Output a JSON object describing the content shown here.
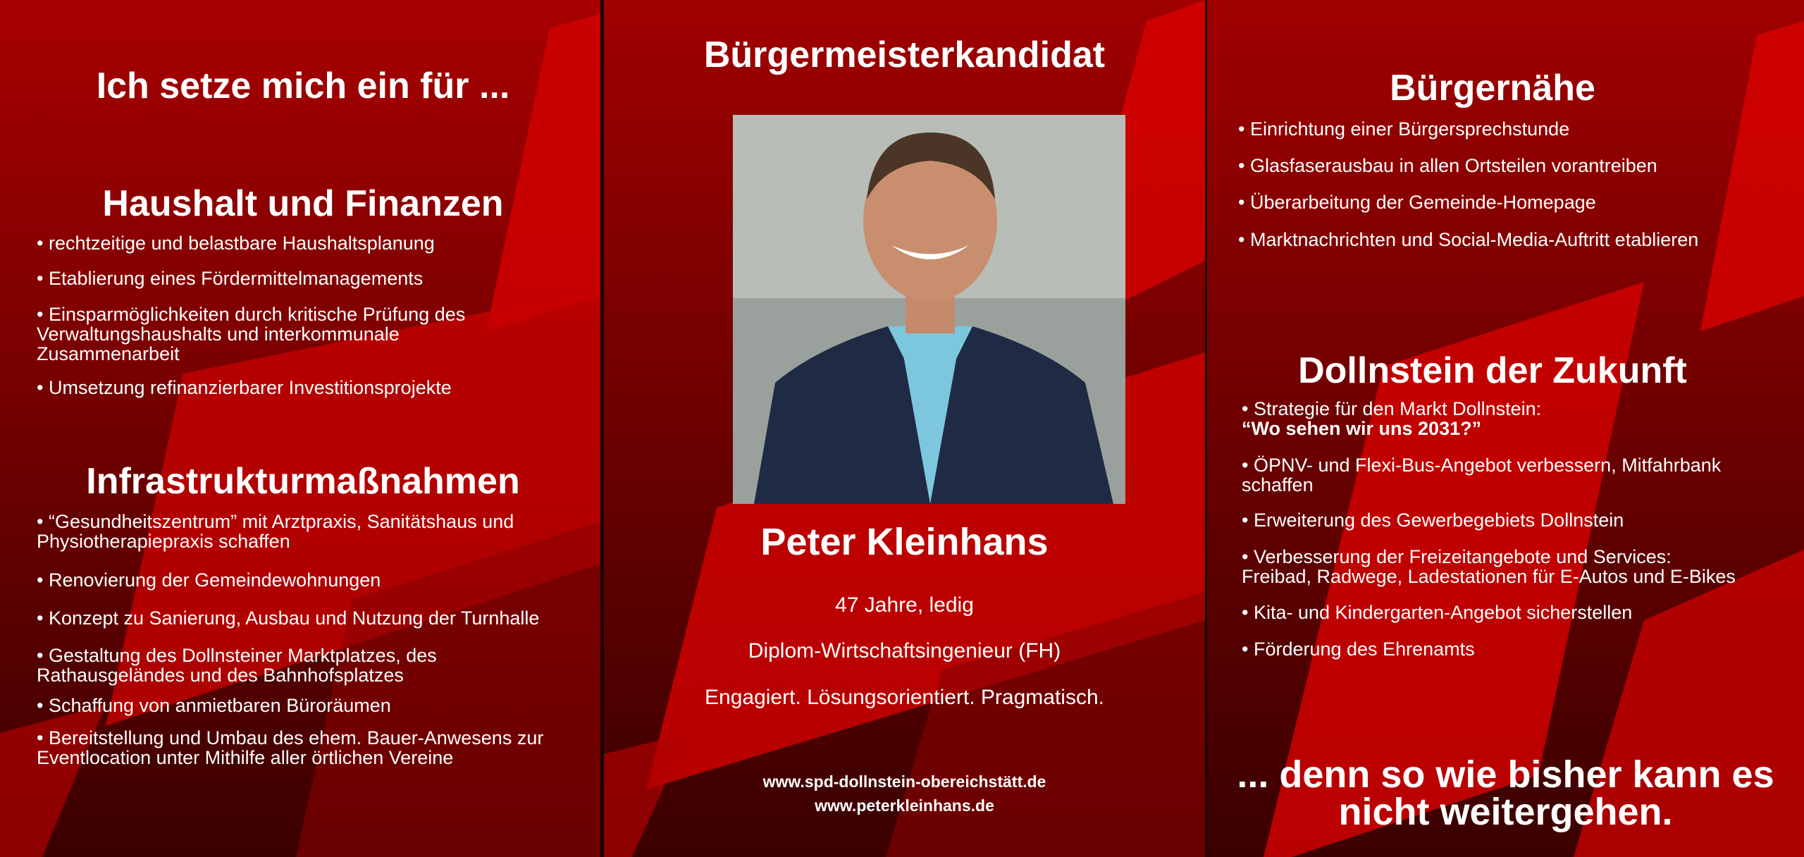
{
  "colors": {
    "dark_red": "#6a0000",
    "red": "#e30613",
    "text": "#ffffff"
  },
  "left": {
    "intro": "Ich setze mich ein für ...",
    "sections": [
      {
        "title": "Haushalt und Finanzen",
        "items": [
          [
            "• rechtzeitige und belastbare Haushaltsplanung"
          ],
          [
            "• Etablierung eines Fördermittelmanagements"
          ],
          [
            "• Einsparmöglichkeiten durch kritische Prüfung des",
            "Verwaltungshaushalts und interkommunale",
            "Zusammenarbeit"
          ],
          [
            "• Umsetzung refinanzierbarer Investitionsprojekte"
          ]
        ]
      },
      {
        "title": "Infrastrukturmaßnahmen",
        "items": [
          [
            "• “Gesundheitszentrum” mit Arztpraxis, Sanitätshaus und",
            "Physiotherapiepraxis schaffen"
          ],
          [
            "• Renovierung der Gemeindewohnungen"
          ],
          [
            "• Konzept zu Sanierung, Ausbau und Nutzung der Turnhalle"
          ],
          [
            "• Gestaltung des Dollnsteiner Marktplatzes, des",
            "Rathausgeländes und des Bahnhofsplatzes"
          ],
          [
            "• Schaffung von anmietbaren Büroräumen"
          ],
          [
            "• Bereitstellung und Umbau des ehem. Bauer-Anwesens zur",
            "Eventlocation unter Mithilfe aller örtlichen Vereine"
          ]
        ]
      }
    ]
  },
  "middle": {
    "title": "Bürgermeisterkandidat",
    "photo_icon": "candidate-portrait",
    "name": "Peter Kleinhans",
    "details": [
      "47 Jahre, ledig",
      "Diplom-Wirtschaftsingenieur (FH)",
      "Engagiert. Lösungsorientiert. Pragmatisch."
    ],
    "urls": [
      "www.spd-dollnstein-obereichstätt.de",
      "www.peterkleinhans.de"
    ]
  },
  "right": {
    "sections": [
      {
        "title": "Bürgernähe",
        "items": [
          [
            "• Einrichtung einer Bürgersprechstunde"
          ],
          [
            "• Glasfaserausbau in allen Ortsteilen vorantreiben"
          ],
          [
            "• Überarbeitung der Gemeinde-Homepage"
          ],
          [
            "• Marktnachrichten und Social-Media-Auftritt etablieren"
          ]
        ]
      },
      {
        "title": "Dollnstein der Zukunft",
        "items": [
          [
            "• Strategie für den Markt Dollnstein:",
            " “Wo sehen wir uns 2031?”"
          ],
          [
            "• ÖPNV- und Flexi-Bus-Angebot verbessern, Mitfahrbank",
            "schaffen"
          ],
          [
            "• Erweiterung des Gewerbegebiets Dollnstein"
          ],
          [
            "• Verbesserung der Freizeitangebote und Services:",
            "Freibad, Radwege, Ladestationen für E-Autos und E-Bikes"
          ],
          [
            "• Kita- und Kindergarten-Angebot sicherstellen"
          ],
          [
            "• Förderung des Ehrenamts"
          ]
        ]
      }
    ],
    "closing": [
      "... denn so wie bisher kann es",
      "nicht weitergehen."
    ]
  }
}
